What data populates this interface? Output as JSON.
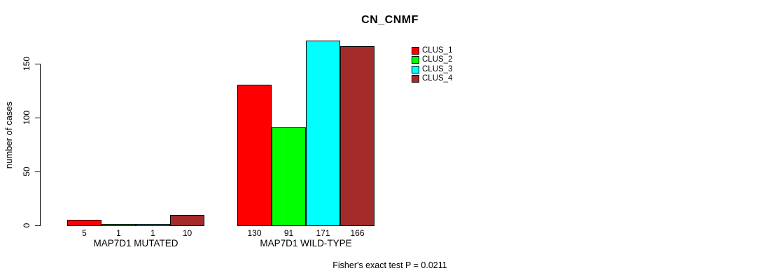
{
  "title": "CN_CNMF",
  "y_axis": {
    "label": "number of cases",
    "ticks": [
      0,
      50,
      100,
      150
    ]
  },
  "footer": "Fisher's exact test P = 0.0211",
  "legend": {
    "items": [
      {
        "label": "CLUS_1",
        "color": "#ff0000"
      },
      {
        "label": "CLUS_2",
        "color": "#00ff00"
      },
      {
        "label": "CLUS_3",
        "color": "#00ffff"
      },
      {
        "label": "CLUS_4",
        "color": "#a52a2a"
      }
    ]
  },
  "chart_data": {
    "type": "bar",
    "title": "CN_CNMF",
    "ylabel": "number of cases",
    "ylim": [
      0,
      175
    ],
    "yticks": [
      0,
      50,
      100,
      150
    ],
    "grid": false,
    "legend_position": "top-right",
    "categories": [
      "MAP7D1 MUTATED",
      "MAP7D1 WILD-TYPE"
    ],
    "series": [
      {
        "name": "CLUS_1",
        "color": "#ff0000",
        "values": [
          5,
          130
        ]
      },
      {
        "name": "CLUS_2",
        "color": "#00ff00",
        "values": [
          1,
          91
        ]
      },
      {
        "name": "CLUS_3",
        "color": "#00ffff",
        "values": [
          1,
          171
        ]
      },
      {
        "name": "CLUS_4",
        "color": "#a52a2a",
        "values": [
          10,
          166
        ]
      }
    ],
    "bar_value_labels_shown": true,
    "annotation": "Fisher's exact test P = 0.0211"
  }
}
